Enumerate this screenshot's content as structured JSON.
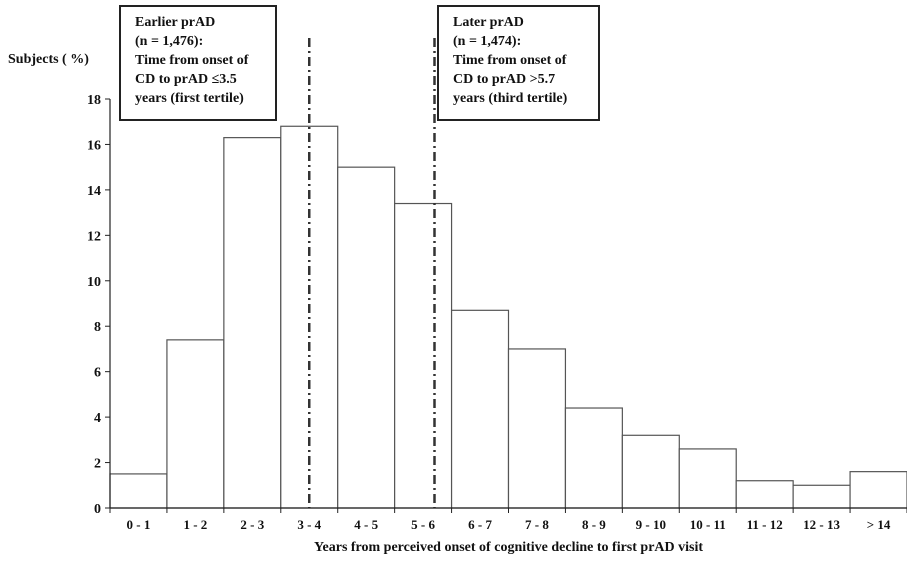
{
  "chart_data": {
    "type": "bar",
    "title": "",
    "xlabel": "Years from perceived onset of cognitive decline to first prAD visit",
    "ylabel": "Subjects ( %)",
    "ylim": [
      0,
      18
    ],
    "yticks": [
      0,
      2,
      4,
      6,
      8,
      10,
      12,
      14,
      16,
      18
    ],
    "grid": false,
    "categories": [
      "0 - 1",
      "1 - 2",
      "2 - 3",
      "3 - 4",
      "4 - 5",
      "5 - 6",
      "6 - 7",
      "7 - 8",
      "8 - 9",
      "9 - 10",
      "10 - 11",
      "11 - 12",
      "12 - 13",
      "> 14"
    ],
    "values": [
      1.5,
      7.4,
      16.3,
      16.8,
      15.0,
      13.4,
      8.7,
      7.0,
      4.4,
      3.2,
      2.6,
      1.2,
      1.0,
      1.6
    ],
    "reference_lines_x": [
      3.5,
      5.7
    ],
    "annotations": [
      {
        "id": "earlier",
        "lines": [
          "Earlier prAD",
          "(n = 1,476):",
          "Time from onset of",
          "CD to prAD ≤3.5",
          "years (first tertile)"
        ]
      },
      {
        "id": "later",
        "lines": [
          "Later prAD",
          "(n = 1,474):",
          "Time from onset of",
          "CD to prAD >5.7",
          "years (third tertile)"
        ]
      }
    ]
  }
}
